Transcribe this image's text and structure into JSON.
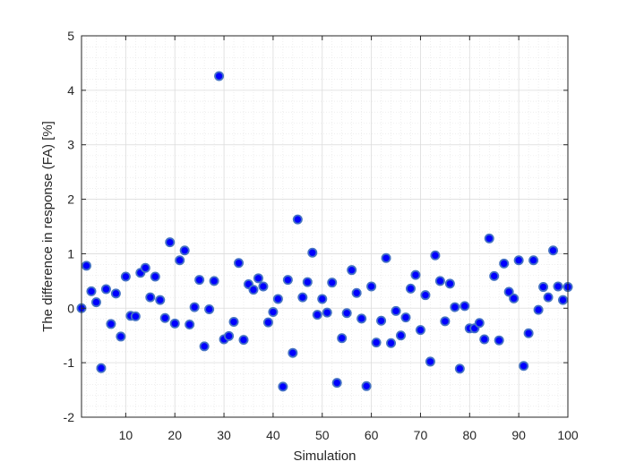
{
  "chart_data": {
    "type": "scatter",
    "title": "",
    "xlabel": "Simulation",
    "ylabel": "The difference in response (FA) [%]",
    "xlim": [
      1,
      100
    ],
    "ylim": [
      -2,
      5
    ],
    "xticks": [
      10,
      20,
      30,
      40,
      50,
      60,
      70,
      80,
      90,
      100
    ],
    "yticks": [
      -2,
      -1,
      0,
      1,
      2,
      3,
      4,
      5
    ],
    "x_tick_labels": [
      "10",
      "20",
      "30",
      "40",
      "50",
      "60",
      "70",
      "80",
      "90",
      "100"
    ],
    "y_tick_labels": [
      "-2",
      "-1",
      "0",
      "1",
      "2",
      "3",
      "4",
      "5"
    ],
    "grid": true,
    "minor_grid": true,
    "marker_face_color": "#0000ff",
    "marker_edge_color": "#4472c4",
    "x": [
      1,
      2,
      3,
      4,
      5,
      6,
      7,
      8,
      9,
      10,
      11,
      12,
      13,
      14,
      15,
      16,
      17,
      18,
      19,
      20,
      21,
      22,
      23,
      24,
      25,
      26,
      27,
      28,
      29,
      30,
      31,
      32,
      33,
      34,
      35,
      36,
      37,
      38,
      39,
      40,
      41,
      42,
      43,
      44,
      45,
      46,
      47,
      48,
      49,
      50,
      51,
      52,
      53,
      54,
      55,
      56,
      57,
      58,
      59,
      60,
      61,
      62,
      63,
      64,
      65,
      66,
      67,
      68,
      69,
      70,
      71,
      72,
      73,
      74,
      75,
      76,
      77,
      78,
      79,
      80,
      81,
      82,
      83,
      84,
      85,
      86,
      87,
      88,
      89,
      90,
      91,
      92,
      93,
      94,
      95,
      96,
      97,
      98,
      99,
      100
    ],
    "y": [
      0.0,
      0.78,
      0.31,
      0.11,
      -1.1,
      0.35,
      -0.29,
      0.27,
      -0.52,
      0.58,
      -0.14,
      -0.15,
      0.65,
      0.74,
      0.2,
      0.58,
      0.15,
      -0.18,
      1.21,
      -0.28,
      0.88,
      1.06,
      -0.3,
      0.02,
      0.52,
      -0.7,
      -0.02,
      0.5,
      4.26,
      -0.57,
      -0.51,
      -0.25,
      0.83,
      -0.58,
      0.44,
      0.34,
      0.55,
      0.4,
      -0.26,
      -0.07,
      0.17,
      -1.44,
      0.52,
      -0.82,
      1.63,
      0.2,
      0.48,
      1.02,
      -0.12,
      0.17,
      -0.08,
      0.47,
      -1.37,
      -0.55,
      -0.09,
      0.7,
      0.28,
      -0.19,
      -1.43,
      0.4,
      -0.63,
      -0.23,
      0.92,
      -0.64,
      -0.05,
      -0.5,
      -0.17,
      0.36,
      0.61,
      -0.4,
      0.24,
      -0.98,
      0.97,
      0.5,
      -0.24,
      0.45,
      0.02,
      -1.11,
      0.04,
      -0.37,
      -0.37,
      -0.27,
      -0.57,
      1.28,
      0.59,
      -0.59,
      0.82,
      0.3,
      0.18,
      0.88,
      -1.06,
      -0.46,
      0.88,
      -0.03,
      0.39,
      0.2,
      1.06,
      0.4,
      0.15,
      0.39
    ]
  }
}
